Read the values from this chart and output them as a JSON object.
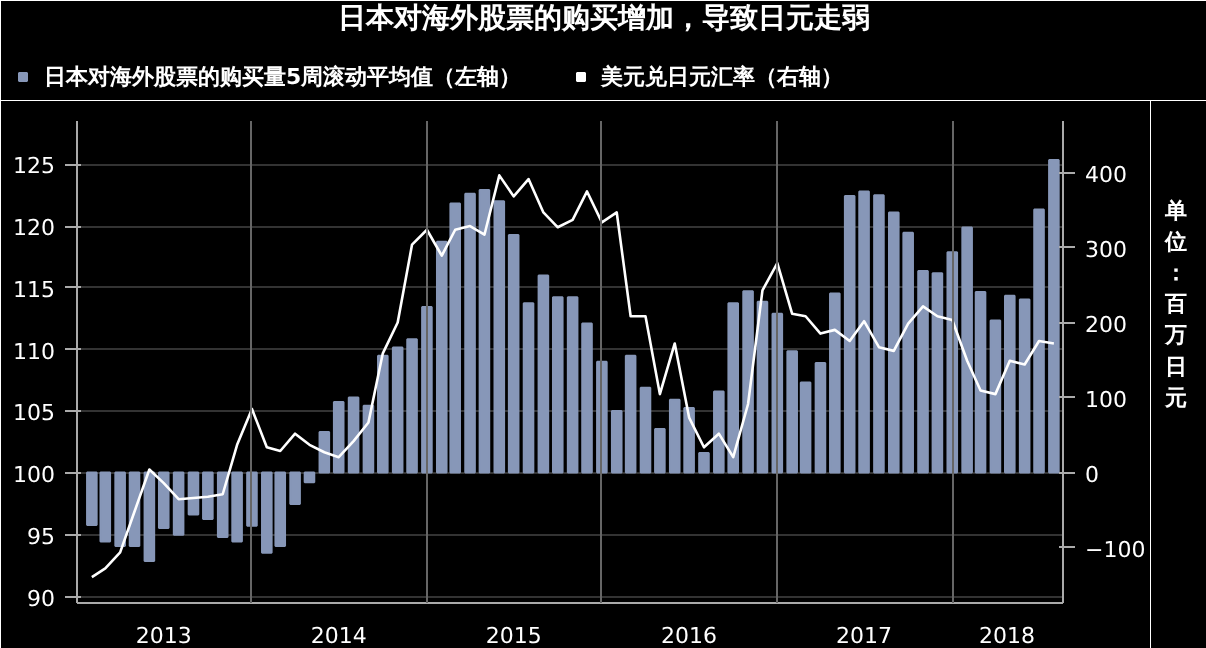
{
  "chart_data": {
    "type": "bar",
    "title": "日本对海外股票的购买增加，导致日元走弱",
    "y2label": "单位：百万日元",
    "x": [
      "2013-02",
      "2013-03",
      "2013-04",
      "2013-05",
      "2013-06",
      "2013-07",
      "2013-08",
      "2013-09",
      "2013-10",
      "2013-11",
      "2013-12",
      "2014-01",
      "2014-02",
      "2014-03",
      "2014-04",
      "2014-05",
      "2014-06",
      "2014-07",
      "2014-08",
      "2014-09",
      "2014-10",
      "2014-11",
      "2014-12",
      "2015-01",
      "2015-02",
      "2015-03",
      "2015-04",
      "2015-05",
      "2015-06",
      "2015-07",
      "2015-08",
      "2015-09",
      "2015-10",
      "2015-11",
      "2015-12",
      "2016-01",
      "2016-02",
      "2016-03",
      "2016-04",
      "2016-05",
      "2016-06",
      "2016-07",
      "2016-08",
      "2016-09",
      "2016-10",
      "2016-11",
      "2016-12",
      "2017-01",
      "2017-02",
      "2017-03",
      "2017-04",
      "2017-05",
      "2017-06",
      "2017-07",
      "2017-08",
      "2017-09",
      "2017-10",
      "2017-11",
      "2017-12",
      "2018-01",
      "2018-02",
      "2018-03",
      "2018-04",
      "2018-05",
      "2018-06",
      "2018-07",
      "2018-08"
    ],
    "series": [
      {
        "name": "日本对海外股票的购买量5周滚动平均值（左轴）",
        "axis": "y2",
        "color": "#8797b8",
        "values": [
          -70,
          -92,
          -98,
          -98,
          -118,
          -74,
          -83,
          -56,
          -62,
          -86,
          -92,
          -71,
          -107,
          -98,
          -42,
          -13,
          54,
          94,
          100,
          89,
          156,
          167,
          178,
          221,
          308,
          359,
          372,
          377,
          362,
          317,
          226,
          263,
          234,
          234,
          199,
          148,
          82,
          156,
          113,
          58,
          97,
          86,
          26,
          108,
          226,
          242,
          228,
          212,
          162,
          120,
          146,
          239,
          369,
          375,
          370,
          347,
          320,
          269,
          266,
          294,
          327,
          241,
          203,
          236,
          231,
          351,
          417
        ]
      },
      {
        "name": "美元兑日元汇率（右轴）",
        "type": "line",
        "color": "#ffffff",
        "values": [
          91.6,
          92.3,
          93.6,
          96.9,
          100.3,
          99.2,
          97.9,
          98.0,
          98.1,
          98.3,
          102.3,
          105.2,
          102.1,
          101.8,
          103.2,
          102.3,
          101.7,
          101.3,
          102.6,
          104.1,
          109.7,
          112.2,
          118.5,
          119.7,
          117.6,
          119.7,
          120.0,
          119.3,
          124.1,
          122.4,
          123.8,
          121.1,
          119.9,
          120.5,
          122.8,
          120.3,
          121.1,
          112.7,
          112.7,
          106.4,
          110.5,
          104.5,
          102.1,
          103.2,
          101.3,
          105.6,
          114.8,
          117.0,
          112.9,
          112.7,
          111.3,
          111.6,
          110.7,
          112.3,
          110.2,
          109.9,
          112.1,
          113.5,
          112.7,
          112.4,
          109.1,
          106.7,
          106.4,
          109.1,
          108.8,
          110.7,
          110.5
        ]
      }
    ],
    "xlim": [
      "2013-01-01",
      "2018-08-20"
    ],
    "xticks": [
      {
        "value": "2014-01-01",
        "label": null
      },
      {
        "value": "2015-01-01",
        "label": null
      },
      {
        "value": "2016-01-01",
        "label": null
      },
      {
        "value": "2017-01-01",
        "label": null
      },
      {
        "value": "2018-01-01",
        "label": null
      },
      {
        "value": "2013-07-01",
        "label": "2013"
      },
      {
        "value": "2014-07-01",
        "label": "2014"
      },
      {
        "value": "2015-07-01",
        "label": "2015"
      },
      {
        "value": "2016-07-01",
        "label": "2016"
      },
      {
        "value": "2017-07-01",
        "label": "2017"
      },
      {
        "value": "2018-04-25",
        "label": "2018"
      }
    ],
    "ylim": [
      89.5,
      128.5
    ],
    "yticks": [
      90,
      95,
      100,
      105,
      110,
      115,
      120,
      125
    ],
    "y2lim": [
      -174,
      469
    ],
    "y2ticks": [
      -100,
      0,
      100,
      200,
      300,
      400
    ],
    "grid": true,
    "legend": "top"
  }
}
